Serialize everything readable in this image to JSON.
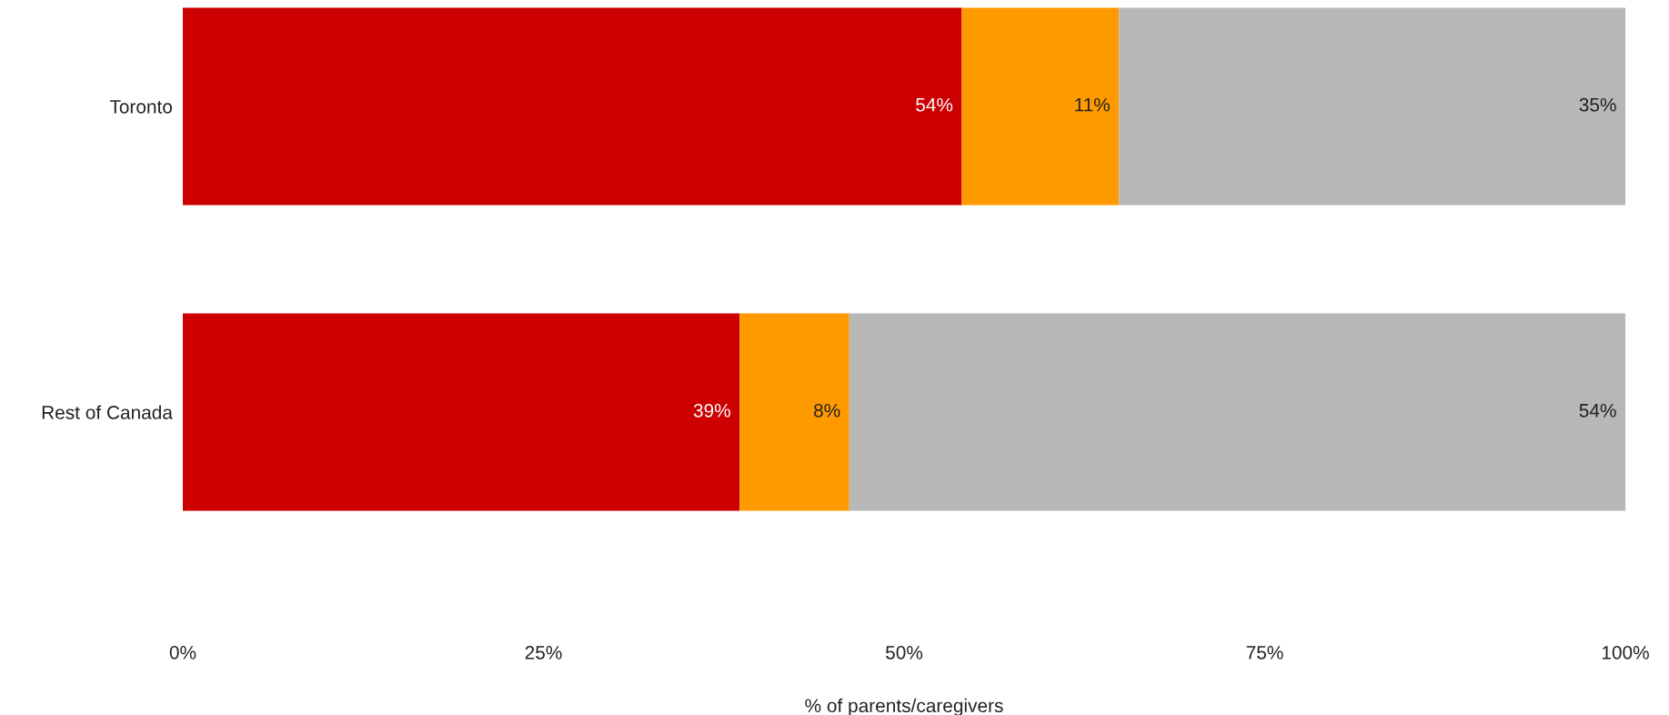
{
  "chart_data": {
    "type": "bar",
    "orientation": "horizontal",
    "stacked": true,
    "xlabel": "% of parents/caregivers",
    "categories": [
      "Toronto",
      "Rest of Canada"
    ],
    "series": [
      {
        "color": "#cc0000",
        "values": [
          54,
          38.6
        ],
        "value_labels": [
          "54%",
          "39%"
        ]
      },
      {
        "color": "#ff9900",
        "values": [
          10.9,
          7.6
        ],
        "value_labels": [
          "11%",
          "8%"
        ]
      },
      {
        "color": "#b7b7b7",
        "values": [
          35.1,
          53.8
        ],
        "value_labels": [
          "35%",
          "54%"
        ]
      }
    ],
    "xlim": [
      0,
      100
    ],
    "xticks": [
      {
        "value": 0,
        "label": "0%"
      },
      {
        "value": 25,
        "label": "25%"
      },
      {
        "value": 50,
        "label": "50%"
      },
      {
        "value": 75,
        "label": "75%"
      },
      {
        "value": 100,
        "label": "100%"
      }
    ],
    "grid": false,
    "legend": false
  }
}
